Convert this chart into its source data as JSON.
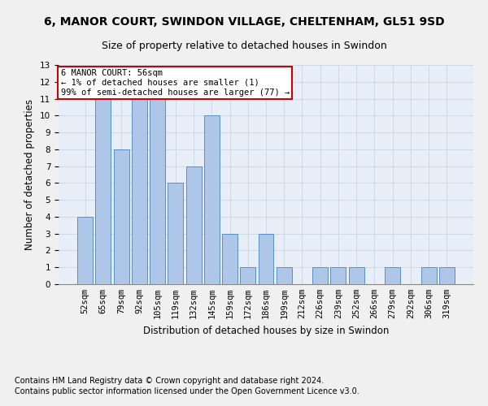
{
  "title1": "6, MANOR COURT, SWINDON VILLAGE, CHELTENHAM, GL51 9SD",
  "title2": "Size of property relative to detached houses in Swindon",
  "xlabel": "Distribution of detached houses by size in Swindon",
  "ylabel": "Number of detached properties",
  "categories": [
    "52sqm",
    "65sqm",
    "79sqm",
    "92sqm",
    "105sqm",
    "119sqm",
    "132sqm",
    "145sqm",
    "159sqm",
    "172sqm",
    "186sqm",
    "199sqm",
    "212sqm",
    "226sqm",
    "239sqm",
    "252sqm",
    "266sqm",
    "279sqm",
    "292sqm",
    "306sqm",
    "319sqm"
  ],
  "values": [
    4,
    11,
    8,
    11,
    11,
    6,
    7,
    10,
    3,
    1,
    3,
    1,
    0,
    1,
    1,
    1,
    0,
    1,
    0,
    1,
    1
  ],
  "bar_color": "#aec6e8",
  "bar_edge_color": "#5a8fc2",
  "annotation_box_text": "6 MANOR COURT: 56sqm\n← 1% of detached houses are smaller (1)\n99% of semi-detached houses are larger (77) →",
  "annotation_box_color": "#ffffff",
  "annotation_box_edge_color": "#cc0000",
  "footnote1": "Contains HM Land Registry data © Crown copyright and database right 2024.",
  "footnote2": "Contains public sector information licensed under the Open Government Licence v3.0.",
  "ylim": [
    0,
    13
  ],
  "yticks": [
    0,
    1,
    2,
    3,
    4,
    5,
    6,
    7,
    8,
    9,
    10,
    11,
    12,
    13
  ],
  "grid_color": "#c8d4e8",
  "bg_color": "#e8eef8",
  "fig_bg_color": "#f0f0f0",
  "title1_fontsize": 10,
  "title2_fontsize": 9,
  "xlabel_fontsize": 8.5,
  "ylabel_fontsize": 8.5,
  "tick_fontsize": 7.5,
  "annotation_fontsize": 7.5,
  "footnote_fontsize": 7
}
